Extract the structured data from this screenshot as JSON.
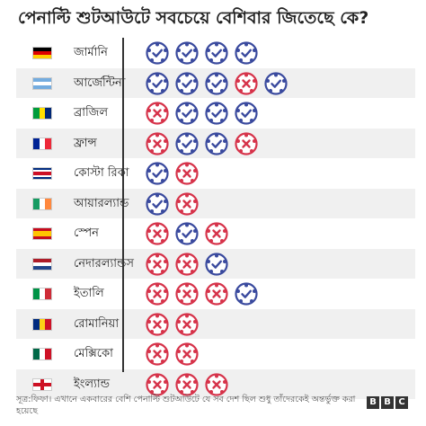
{
  "title": "পেনাল্টি শুটআউটে সবচেয়ে বেশিবার জিতেছে কে?",
  "chart_data": {
    "type": "table",
    "title": "পেনাল্টি শুটআউটে সবচেয়ে বেশিবার জিতেছে কে?",
    "rows": [
      {
        "country": "জার্মানি",
        "flag": "germany",
        "results": [
          "win",
          "win",
          "win",
          "win"
        ]
      },
      {
        "country": "আর্জেন্টিনা",
        "flag": "argentina",
        "results": [
          "win",
          "win",
          "win",
          "loss",
          "win"
        ]
      },
      {
        "country": "ব্রাজিল",
        "flag": "brazil",
        "results": [
          "loss",
          "win",
          "win",
          "win"
        ]
      },
      {
        "country": "ফ্রান্স",
        "flag": "france",
        "results": [
          "loss",
          "win",
          "win",
          "loss"
        ]
      },
      {
        "country": "কোস্টা রিকা",
        "flag": "costa-rica",
        "results": [
          "win",
          "loss"
        ]
      },
      {
        "country": "আয়ারল্যান্ড",
        "flag": "ireland",
        "results": [
          "win",
          "loss"
        ]
      },
      {
        "country": "স্পেন",
        "flag": "spain",
        "results": [
          "loss",
          "win",
          "loss"
        ]
      },
      {
        "country": "নেদারল্যান্ডস",
        "flag": "netherlands",
        "results": [
          "loss",
          "loss",
          "win"
        ]
      },
      {
        "country": "ইতালি",
        "flag": "italy",
        "results": [
          "loss",
          "loss",
          "loss",
          "win"
        ]
      },
      {
        "country": "রোমানিয়া",
        "flag": "romania",
        "results": [
          "loss",
          "loss"
        ]
      },
      {
        "country": "মেক্সিকো",
        "flag": "mexico",
        "results": [
          "loss",
          "loss"
        ]
      },
      {
        "country": "ইংল্যান্ড",
        "flag": "england",
        "results": [
          "loss",
          "loss",
          "loss"
        ]
      }
    ]
  },
  "colors": {
    "win": "#3a4a9e",
    "loss": "#d6334a",
    "ball_fill": "#ffffff",
    "flags": {
      "germany": [
        "#000000",
        "#dd0000",
        "#ffce00"
      ],
      "argentina": [
        "#74acdf",
        "#ffffff",
        "#74acdf"
      ],
      "brazil": [
        "#009c3b",
        "#ffdf00",
        "#002776"
      ],
      "france": [
        "#002395",
        "#ffffff",
        "#ed2939"
      ],
      "costa-rica": [
        "#002b7f",
        "#ffffff",
        "#ce1126",
        "#ffffff",
        "#002b7f"
      ],
      "ireland": [
        "#169b62",
        "#ffffff",
        "#ff883e"
      ],
      "spain": [
        "#c60b1e",
        "#ffc400",
        "#c60b1e"
      ],
      "netherlands": [
        "#ae1c28",
        "#ffffff",
        "#21468b"
      ],
      "italy": [
        "#009246",
        "#ffffff",
        "#ce2b37"
      ],
      "romania": [
        "#002b7f",
        "#fcd116",
        "#ce1126"
      ],
      "mexico": [
        "#006847",
        "#ffffff",
        "#ce1126"
      ],
      "england": [
        "#ffffff",
        "#ce1124"
      ]
    }
  },
  "footer": {
    "note": "সূত্র:ফিফা। এখানে একবারের বেশি পেনাল্টি শুটআউটে যে সব দেশ ছিল শুধু তাঁদেরকেই অন্তর্ভুক্ত করা হয়েছে",
    "logo": [
      "B",
      "B",
      "C"
    ]
  }
}
